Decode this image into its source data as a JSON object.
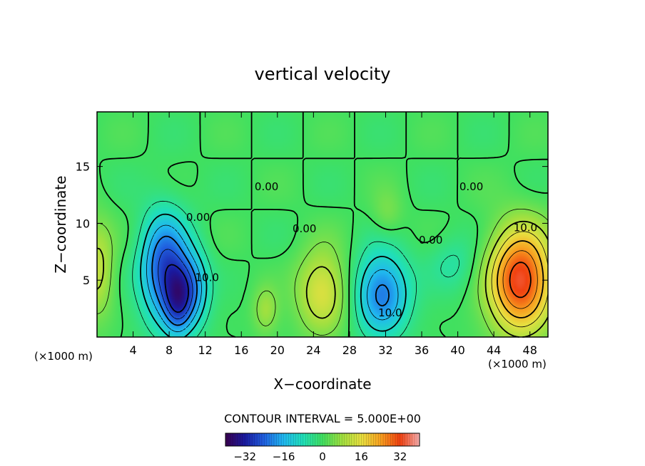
{
  "chart_data": {
    "type": "heatmap",
    "title": "vertical velocity",
    "xlabel": "X−coordinate",
    "ylabel": "Z−coordinate",
    "x_unit_left": "(×1000 m)",
    "x_unit_right": "(×1000 m)",
    "xlim": [
      0,
      50
    ],
    "ylim": [
      0,
      19.8
    ],
    "x_ticks": [
      4,
      8,
      12,
      16,
      20,
      24,
      28,
      32,
      36,
      40,
      44,
      48
    ],
    "x_tick_labels": [
      "4",
      "8",
      "12",
      "16",
      "20",
      "24",
      "28",
      "32",
      "36",
      "40",
      "44",
      "48"
    ],
    "y_ticks": [
      5,
      10,
      15
    ],
    "y_tick_labels": [
      "5",
      "10",
      "15"
    ],
    "contour_interval_text": "CONTOUR INTERVAL = 5.000E+00",
    "contour_interval": 5,
    "contour_labels": [
      {
        "text": "0.00",
        "x": 11.2,
        "z": 10.5
      },
      {
        "text": "0.00",
        "x": 18.8,
        "z": 13.2
      },
      {
        "text": "0.00",
        "x": 23.0,
        "z": 9.5
      },
      {
        "text": "0.00",
        "x": 37.0,
        "z": 8.5
      },
      {
        "text": "0.00",
        "x": 41.5,
        "z": 13.2
      },
      {
        "text": "10.0",
        "x": 47.5,
        "z": 9.6
      },
      {
        "text": "10.0",
        "x": 12.2,
        "z": 5.2
      },
      {
        "text": "10.0",
        "x": 32.5,
        "z": 2.1
      }
    ],
    "field_features": [
      {
        "kind": "updraft",
        "x": 47.0,
        "z": 5.0,
        "peak": 34,
        "sx": 2.5,
        "sz": 3.2
      },
      {
        "kind": "updraft",
        "x": 25.0,
        "z": 4.0,
        "peak": 15,
        "sx": 2.0,
        "sz": 2.6
      },
      {
        "kind": "updraft",
        "x": 0.0,
        "z": 6.0,
        "peak": 12,
        "sx": 1.3,
        "sz": 3.0
      },
      {
        "kind": "updraft",
        "x": 18.7,
        "z": 2.4,
        "peak": 8,
        "sx": 1.0,
        "sz": 1.5
      },
      {
        "kind": "updraft",
        "x": 32.2,
        "z": 10.8,
        "peak": 5,
        "sx": 1.2,
        "sz": 1.5
      },
      {
        "kind": "downdraft",
        "x": 7.5,
        "z": 6.0,
        "peak": -26,
        "sx": 1.9,
        "sz": 3.4
      },
      {
        "kind": "downdraft",
        "x": 9.0,
        "z": 3.2,
        "peak": -18,
        "sx": 1.1,
        "sz": 2.2
      },
      {
        "kind": "downdraft",
        "x": 10.8,
        "z": 4.2,
        "peak": -14,
        "sx": 1.3,
        "sz": 2.4
      },
      {
        "kind": "downdraft",
        "x": 31.6,
        "z": 3.8,
        "peak": -22,
        "sx": 2.1,
        "sz": 2.6
      },
      {
        "kind": "downdraft",
        "x": 39.6,
        "z": 6.4,
        "peak": -6,
        "sx": 2.0,
        "sz": 1.8
      }
    ],
    "colorbar": {
      "min": -40,
      "max": 40,
      "ticks": [
        -32,
        -16,
        0,
        16,
        32
      ],
      "tick_labels": [
        "−32",
        "−16",
        "0",
        "16",
        "32"
      ],
      "stops": [
        {
          "v": -40,
          "color": "#3a0050"
        },
        {
          "v": -32,
          "color": "#1a1aa0"
        },
        {
          "v": -24,
          "color": "#2060e0"
        },
        {
          "v": -16,
          "color": "#20b8f0"
        },
        {
          "v": -8,
          "color": "#20e0b8"
        },
        {
          "v": 0,
          "color": "#40e060"
        },
        {
          "v": 8,
          "color": "#a0e040"
        },
        {
          "v": 16,
          "color": "#e8e040"
        },
        {
          "v": 24,
          "color": "#f8a020"
        },
        {
          "v": 32,
          "color": "#f04010"
        },
        {
          "v": 40,
          "color": "#f8b0b0"
        }
      ]
    }
  }
}
